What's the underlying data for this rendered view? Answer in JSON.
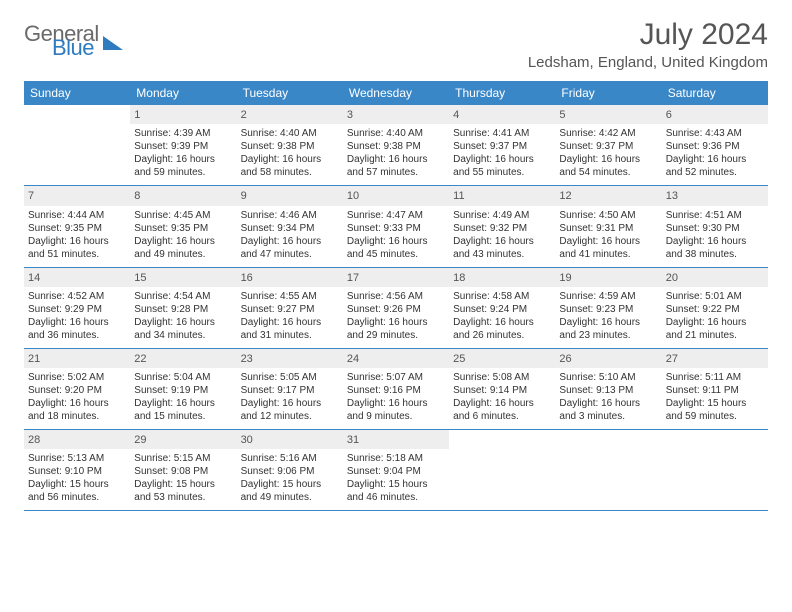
{
  "logo": {
    "text1": "General",
    "text2": "Blue"
  },
  "title": "July 2024",
  "location": "Ledsham, England, United Kingdom",
  "colors": {
    "header_bg": "#3a87c8",
    "header_text": "#ffffff",
    "daynum_bg": "#eeeeee",
    "rule": "#3a87c8",
    "body_text": "#333333"
  },
  "day_labels": [
    "Sunday",
    "Monday",
    "Tuesday",
    "Wednesday",
    "Thursday",
    "Friday",
    "Saturday"
  ],
  "weeks": [
    [
      {
        "n": "",
        "sr": "",
        "ss": "",
        "dl": ""
      },
      {
        "n": "1",
        "sr": "Sunrise: 4:39 AM",
        "ss": "Sunset: 9:39 PM",
        "dl": "Daylight: 16 hours and 59 minutes."
      },
      {
        "n": "2",
        "sr": "Sunrise: 4:40 AM",
        "ss": "Sunset: 9:38 PM",
        "dl": "Daylight: 16 hours and 58 minutes."
      },
      {
        "n": "3",
        "sr": "Sunrise: 4:40 AM",
        "ss": "Sunset: 9:38 PM",
        "dl": "Daylight: 16 hours and 57 minutes."
      },
      {
        "n": "4",
        "sr": "Sunrise: 4:41 AM",
        "ss": "Sunset: 9:37 PM",
        "dl": "Daylight: 16 hours and 55 minutes."
      },
      {
        "n": "5",
        "sr": "Sunrise: 4:42 AM",
        "ss": "Sunset: 9:37 PM",
        "dl": "Daylight: 16 hours and 54 minutes."
      },
      {
        "n": "6",
        "sr": "Sunrise: 4:43 AM",
        "ss": "Sunset: 9:36 PM",
        "dl": "Daylight: 16 hours and 52 minutes."
      }
    ],
    [
      {
        "n": "7",
        "sr": "Sunrise: 4:44 AM",
        "ss": "Sunset: 9:35 PM",
        "dl": "Daylight: 16 hours and 51 minutes."
      },
      {
        "n": "8",
        "sr": "Sunrise: 4:45 AM",
        "ss": "Sunset: 9:35 PM",
        "dl": "Daylight: 16 hours and 49 minutes."
      },
      {
        "n": "9",
        "sr": "Sunrise: 4:46 AM",
        "ss": "Sunset: 9:34 PM",
        "dl": "Daylight: 16 hours and 47 minutes."
      },
      {
        "n": "10",
        "sr": "Sunrise: 4:47 AM",
        "ss": "Sunset: 9:33 PM",
        "dl": "Daylight: 16 hours and 45 minutes."
      },
      {
        "n": "11",
        "sr": "Sunrise: 4:49 AM",
        "ss": "Sunset: 9:32 PM",
        "dl": "Daylight: 16 hours and 43 minutes."
      },
      {
        "n": "12",
        "sr": "Sunrise: 4:50 AM",
        "ss": "Sunset: 9:31 PM",
        "dl": "Daylight: 16 hours and 41 minutes."
      },
      {
        "n": "13",
        "sr": "Sunrise: 4:51 AM",
        "ss": "Sunset: 9:30 PM",
        "dl": "Daylight: 16 hours and 38 minutes."
      }
    ],
    [
      {
        "n": "14",
        "sr": "Sunrise: 4:52 AM",
        "ss": "Sunset: 9:29 PM",
        "dl": "Daylight: 16 hours and 36 minutes."
      },
      {
        "n": "15",
        "sr": "Sunrise: 4:54 AM",
        "ss": "Sunset: 9:28 PM",
        "dl": "Daylight: 16 hours and 34 minutes."
      },
      {
        "n": "16",
        "sr": "Sunrise: 4:55 AM",
        "ss": "Sunset: 9:27 PM",
        "dl": "Daylight: 16 hours and 31 minutes."
      },
      {
        "n": "17",
        "sr": "Sunrise: 4:56 AM",
        "ss": "Sunset: 9:26 PM",
        "dl": "Daylight: 16 hours and 29 minutes."
      },
      {
        "n": "18",
        "sr": "Sunrise: 4:58 AM",
        "ss": "Sunset: 9:24 PM",
        "dl": "Daylight: 16 hours and 26 minutes."
      },
      {
        "n": "19",
        "sr": "Sunrise: 4:59 AM",
        "ss": "Sunset: 9:23 PM",
        "dl": "Daylight: 16 hours and 23 minutes."
      },
      {
        "n": "20",
        "sr": "Sunrise: 5:01 AM",
        "ss": "Sunset: 9:22 PM",
        "dl": "Daylight: 16 hours and 21 minutes."
      }
    ],
    [
      {
        "n": "21",
        "sr": "Sunrise: 5:02 AM",
        "ss": "Sunset: 9:20 PM",
        "dl": "Daylight: 16 hours and 18 minutes."
      },
      {
        "n": "22",
        "sr": "Sunrise: 5:04 AM",
        "ss": "Sunset: 9:19 PM",
        "dl": "Daylight: 16 hours and 15 minutes."
      },
      {
        "n": "23",
        "sr": "Sunrise: 5:05 AM",
        "ss": "Sunset: 9:17 PM",
        "dl": "Daylight: 16 hours and 12 minutes."
      },
      {
        "n": "24",
        "sr": "Sunrise: 5:07 AM",
        "ss": "Sunset: 9:16 PM",
        "dl": "Daylight: 16 hours and 9 minutes."
      },
      {
        "n": "25",
        "sr": "Sunrise: 5:08 AM",
        "ss": "Sunset: 9:14 PM",
        "dl": "Daylight: 16 hours and 6 minutes."
      },
      {
        "n": "26",
        "sr": "Sunrise: 5:10 AM",
        "ss": "Sunset: 9:13 PM",
        "dl": "Daylight: 16 hours and 3 minutes."
      },
      {
        "n": "27",
        "sr": "Sunrise: 5:11 AM",
        "ss": "Sunset: 9:11 PM",
        "dl": "Daylight: 15 hours and 59 minutes."
      }
    ],
    [
      {
        "n": "28",
        "sr": "Sunrise: 5:13 AM",
        "ss": "Sunset: 9:10 PM",
        "dl": "Daylight: 15 hours and 56 minutes."
      },
      {
        "n": "29",
        "sr": "Sunrise: 5:15 AM",
        "ss": "Sunset: 9:08 PM",
        "dl": "Daylight: 15 hours and 53 minutes."
      },
      {
        "n": "30",
        "sr": "Sunrise: 5:16 AM",
        "ss": "Sunset: 9:06 PM",
        "dl": "Daylight: 15 hours and 49 minutes."
      },
      {
        "n": "31",
        "sr": "Sunrise: 5:18 AM",
        "ss": "Sunset: 9:04 PM",
        "dl": "Daylight: 15 hours and 46 minutes."
      },
      {
        "n": "",
        "sr": "",
        "ss": "",
        "dl": ""
      },
      {
        "n": "",
        "sr": "",
        "ss": "",
        "dl": ""
      },
      {
        "n": "",
        "sr": "",
        "ss": "",
        "dl": ""
      }
    ]
  ]
}
